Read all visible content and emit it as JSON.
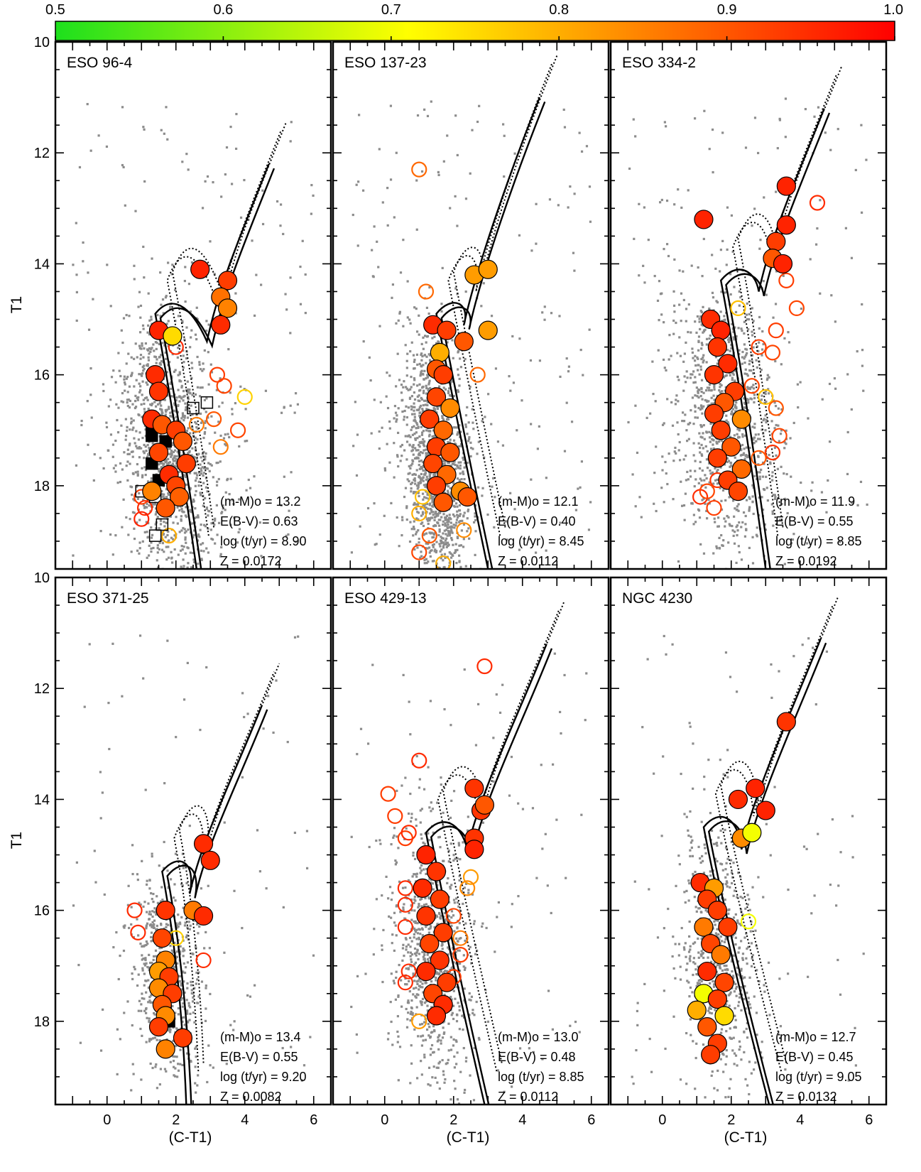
{
  "chart_data": {
    "type": "scatter",
    "colorbar": {
      "ticks": [
        "0.5",
        "0.6",
        "0.7",
        "0.8",
        "0.9",
        "1.0"
      ],
      "range": [
        0.5,
        1.0
      ],
      "colors": [
        "#1de01d",
        "#ffff00",
        "#ffa500",
        "#ff0000"
      ]
    },
    "x_axis": {
      "label": "(C-T1)",
      "range": [
        -1.5,
        6.5
      ],
      "ticks": [
        "0",
        "2",
        "4",
        "6"
      ]
    },
    "y_axis": {
      "label": "T1",
      "range": [
        19.5,
        10
      ],
      "ticks": [
        "10",
        "12",
        "14",
        "16",
        "18"
      ]
    },
    "panels": [
      {
        "title": "ESO 96-4",
        "params": [
          "(m-M)o = 13.2",
          "E(B-V) = 0.63",
          "log (t/yr) = 8.90",
          "Z = 0.0172"
        ],
        "field": {
          "cx": 1.8,
          "cy": 17.4,
          "sx": 0.7,
          "sy": 1.2,
          "n": 1400,
          "seed": 11
        },
        "iso": {
          "msx": 2.6,
          "msy": 19.5,
          "tox": 1.4,
          "toy": 14.9,
          "bmx": 2.9,
          "bmy": 15.4,
          "tipx": 4.7,
          "tipy": 12.2
        },
        "members": [
          [
            2.7,
            14.1,
            0.96
          ],
          [
            3.5,
            14.3,
            0.93
          ],
          [
            3.3,
            14.6,
            0.87
          ],
          [
            3.5,
            14.8,
            0.85
          ],
          [
            3.3,
            15.1,
            0.95
          ],
          [
            1.5,
            15.2,
            0.96
          ],
          [
            1.9,
            15.3,
            0.75
          ],
          [
            1.4,
            16.0,
            0.95
          ],
          [
            1.5,
            16.3,
            0.94
          ],
          [
            1.3,
            16.8,
            0.95
          ],
          [
            1.6,
            16.9,
            0.9
          ],
          [
            2.0,
            17.0,
            0.93
          ],
          [
            2.2,
            17.2,
            0.9
          ],
          [
            1.5,
            17.4,
            0.92
          ],
          [
            2.3,
            17.6,
            0.93
          ],
          [
            1.8,
            17.8,
            0.95
          ],
          [
            2.0,
            18.0,
            0.92
          ],
          [
            1.3,
            18.1,
            0.85
          ],
          [
            2.1,
            18.2,
            0.89
          ],
          [
            1.7,
            18.4,
            0.9
          ]
        ],
        "open": [
          [
            2.0,
            15.5,
            0.95
          ],
          [
            3.2,
            16.0,
            0.93
          ],
          [
            3.4,
            16.2,
            0.92
          ],
          [
            4.0,
            16.4,
            0.76
          ],
          [
            3.1,
            16.8,
            0.9
          ],
          [
            2.6,
            16.9,
            0.86
          ],
          [
            3.8,
            17.0,
            0.92
          ],
          [
            3.3,
            17.3,
            0.86
          ],
          [
            1.0,
            18.2,
            0.93
          ],
          [
            1.1,
            18.4,
            0.95
          ],
          [
            1.0,
            18.6,
            0.96
          ],
          [
            1.8,
            18.9,
            0.8
          ]
        ],
        "squares": [
          [
            1.3,
            16.9,
            1
          ],
          [
            1.3,
            17.1,
            1
          ],
          [
            1.7,
            17.2,
            1
          ],
          [
            1.3,
            17.6,
            1
          ],
          [
            1.5,
            17.9,
            1
          ],
          [
            1.0,
            18.1,
            0
          ],
          [
            1.4,
            18.2,
            0
          ],
          [
            1.6,
            18.7,
            0
          ],
          [
            1.4,
            18.9,
            0
          ],
          [
            2.5,
            16.6,
            0
          ],
          [
            2.9,
            16.5,
            0
          ]
        ]
      },
      {
        "title": "ESO 137-23",
        "params": [
          "(m-M)o = 12.1",
          "E(B-V) = 0.40",
          "log (t/yr) = 8.45",
          "Z = 0.0112"
        ],
        "field": {
          "cx": 1.5,
          "cy": 17.6,
          "sx": 0.5,
          "sy": 1.1,
          "n": 1500,
          "seed": 23
        },
        "iso": {
          "msx": 3.0,
          "msy": 19.5,
          "tox": 1.5,
          "toy": 14.9,
          "bmx": 2.3,
          "bmy": 15.1,
          "tipx": 4.5,
          "tipy": 11.0
        },
        "members": [
          [
            2.6,
            14.2,
            0.82
          ],
          [
            3.0,
            14.1,
            0.82
          ],
          [
            1.4,
            15.1,
            0.95
          ],
          [
            1.8,
            15.2,
            0.93
          ],
          [
            2.3,
            15.4,
            0.9
          ],
          [
            3.0,
            15.2,
            0.82
          ],
          [
            1.6,
            15.6,
            0.8
          ],
          [
            1.5,
            15.9,
            0.9
          ],
          [
            1.7,
            16.0,
            0.93
          ],
          [
            1.5,
            16.4,
            0.92
          ],
          [
            1.9,
            16.6,
            0.84
          ],
          [
            1.3,
            16.8,
            0.93
          ],
          [
            1.7,
            17.0,
            0.88
          ],
          [
            1.5,
            17.3,
            0.93
          ],
          [
            1.9,
            17.4,
            0.9
          ],
          [
            1.4,
            17.6,
            0.92
          ],
          [
            1.8,
            17.8,
            0.88
          ],
          [
            1.5,
            18.0,
            0.93
          ],
          [
            2.2,
            18.1,
            0.84
          ],
          [
            1.7,
            18.3,
            0.9
          ],
          [
            2.4,
            18.2,
            0.9
          ]
        ],
        "open": [
          [
            1.0,
            12.3,
            0.88
          ],
          [
            1.2,
            14.5,
            0.88
          ],
          [
            2.7,
            16.0,
            0.88
          ],
          [
            1.1,
            18.2,
            0.78
          ],
          [
            1.0,
            18.5,
            0.8
          ],
          [
            1.3,
            18.9,
            0.9
          ],
          [
            2.3,
            18.8,
            0.84
          ],
          [
            1.0,
            19.2,
            0.92
          ],
          [
            1.7,
            19.4,
            0.8
          ]
        ]
      },
      {
        "title": "ESO 334-2",
        "params": [
          "(m-M)o = 11.9",
          "E(B-V) = 0.55",
          "log (t/yr) = 8.85",
          "Z = 0.0192"
        ],
        "field": {
          "cx": 1.9,
          "cy": 16.8,
          "sx": 0.8,
          "sy": 1.3,
          "n": 1100,
          "seed": 37
        },
        "iso": {
          "msx": 3.0,
          "msy": 19.5,
          "tox": 1.7,
          "toy": 14.3,
          "bmx": 2.8,
          "bmy": 14.5,
          "tipx": 4.7,
          "tipy": 11.2
        },
        "members": [
          [
            3.6,
            12.6,
            0.96
          ],
          [
            1.2,
            13.2,
            0.96
          ],
          [
            3.6,
            13.3,
            0.96
          ],
          [
            3.3,
            13.6,
            0.93
          ],
          [
            3.2,
            13.9,
            0.9
          ],
          [
            3.5,
            14.0,
            0.96
          ],
          [
            1.4,
            15.0,
            0.95
          ],
          [
            1.7,
            15.2,
            0.96
          ],
          [
            1.6,
            15.5,
            0.94
          ],
          [
            1.9,
            15.8,
            0.95
          ],
          [
            1.5,
            16.0,
            0.94
          ],
          [
            2.1,
            16.3,
            0.93
          ],
          [
            1.8,
            16.5,
            0.9
          ],
          [
            1.5,
            16.7,
            0.93
          ],
          [
            2.3,
            16.8,
            0.84
          ],
          [
            1.7,
            17.0,
            0.93
          ],
          [
            2.0,
            17.3,
            0.9
          ],
          [
            1.6,
            17.5,
            0.93
          ],
          [
            2.3,
            17.7,
            0.88
          ],
          [
            1.9,
            17.9,
            0.93
          ],
          [
            2.2,
            18.1,
            0.92
          ]
        ],
        "open": [
          [
            4.5,
            12.9,
            0.95
          ],
          [
            2.2,
            14.8,
            0.78
          ],
          [
            3.6,
            14.3,
            0.93
          ],
          [
            3.9,
            14.8,
            0.92
          ],
          [
            3.3,
            15.2,
            0.93
          ],
          [
            2.8,
            15.5,
            0.93
          ],
          [
            3.2,
            15.6,
            0.92
          ],
          [
            2.6,
            16.2,
            0.92
          ],
          [
            3.0,
            16.4,
            0.78
          ],
          [
            3.3,
            16.6,
            0.9
          ],
          [
            3.4,
            17.1,
            0.92
          ],
          [
            3.2,
            17.4,
            0.94
          ],
          [
            2.8,
            17.5,
            0.9
          ],
          [
            1.6,
            17.9,
            0.94
          ],
          [
            1.1,
            18.2,
            0.95
          ],
          [
            1.5,
            18.4,
            0.93
          ],
          [
            1.3,
            18.1,
            0.92
          ]
        ]
      },
      {
        "title": "ESO 371-25",
        "params": [
          "(m-M)o = 13.4",
          "E(B-V) = 0.55",
          "log (t/yr) = 9.20",
          "Z = 0.0082"
        ],
        "field": {
          "cx": 1.7,
          "cy": 17.1,
          "sx": 0.5,
          "sy": 1.0,
          "n": 650,
          "seed": 41
        },
        "iso": {
          "msx": 2.3,
          "msy": 19.5,
          "tox": 1.6,
          "toy": 15.3,
          "bmx": 2.4,
          "bmy": 15.7,
          "tipx": 4.5,
          "tipy": 12.3
        },
        "members": [
          [
            2.8,
            14.8,
            0.95
          ],
          [
            3.0,
            15.1,
            0.95
          ],
          [
            2.5,
            16.0,
            0.86
          ],
          [
            2.8,
            16.1,
            0.95
          ],
          [
            1.7,
            16.0,
            0.94
          ],
          [
            1.6,
            16.5,
            0.92
          ],
          [
            1.7,
            16.9,
            0.85
          ],
          [
            1.5,
            17.1,
            0.82
          ],
          [
            1.8,
            17.2,
            0.93
          ],
          [
            1.5,
            17.4,
            0.84
          ],
          [
            1.9,
            17.5,
            0.93
          ],
          [
            1.6,
            17.7,
            0.9
          ],
          [
            1.7,
            17.9,
            0.84
          ],
          [
            1.5,
            18.1,
            0.93
          ],
          [
            2.2,
            18.3,
            0.93
          ],
          [
            1.7,
            18.5,
            0.85
          ]
        ],
        "open": [
          [
            0.8,
            16.0,
            0.95
          ],
          [
            0.9,
            16.4,
            0.95
          ],
          [
            2.0,
            16.5,
            0.76
          ],
          [
            2.8,
            16.9,
            0.95
          ]
        ],
        "squares": [
          [
            1.7,
            17.8,
            1
          ],
          [
            1.8,
            18.0,
            1
          ]
        ]
      },
      {
        "title": "ESO 429-13",
        "params": [
          "(m-M)o = 13.0",
          "E(B-V) = 0.48",
          "log (t/yr) = 8.85",
          "Z = 0.0112"
        ],
        "field": {
          "cx": 1.4,
          "cy": 16.8,
          "sx": 0.6,
          "sy": 1.2,
          "n": 900,
          "seed": 53
        },
        "iso": {
          "msx": 2.9,
          "msy": 19.5,
          "tox": 1.2,
          "toy": 14.6,
          "bmx": 2.4,
          "bmy": 14.9,
          "tipx": 4.7,
          "tipy": 11.2
        },
        "members": [
          [
            2.6,
            13.8,
            0.94
          ],
          [
            2.8,
            14.2,
            0.94
          ],
          [
            2.9,
            14.1,
            0.9
          ],
          [
            2.6,
            14.7,
            0.94
          ],
          [
            2.6,
            14.9,
            0.96
          ],
          [
            1.2,
            15.0,
            0.96
          ],
          [
            1.5,
            15.3,
            0.94
          ],
          [
            1.1,
            15.6,
            0.95
          ],
          [
            1.6,
            15.8,
            0.93
          ],
          [
            1.2,
            16.1,
            0.94
          ],
          [
            1.7,
            16.4,
            0.93
          ],
          [
            1.3,
            16.6,
            0.92
          ],
          [
            1.6,
            16.9,
            0.94
          ],
          [
            1.2,
            17.1,
            0.95
          ],
          [
            1.8,
            17.3,
            0.93
          ],
          [
            1.4,
            17.5,
            0.92
          ],
          [
            1.7,
            17.7,
            0.95
          ],
          [
            1.5,
            17.9,
            0.95
          ]
        ],
        "open": [
          [
            2.9,
            11.6,
            0.95
          ],
          [
            1.0,
            13.3,
            0.95
          ],
          [
            0.1,
            13.9,
            0.93
          ],
          [
            0.3,
            14.3,
            0.93
          ],
          [
            0.6,
            14.7,
            0.93
          ],
          [
            0.7,
            14.6,
            0.95
          ],
          [
            2.5,
            15.4,
            0.82
          ],
          [
            2.4,
            15.6,
            0.84
          ],
          [
            0.6,
            15.6,
            0.95
          ],
          [
            0.6,
            15.9,
            0.95
          ],
          [
            2.0,
            16.1,
            0.92
          ],
          [
            0.6,
            16.3,
            0.95
          ],
          [
            2.2,
            16.5,
            0.86
          ],
          [
            2.2,
            16.8,
            0.93
          ],
          [
            0.7,
            17.1,
            0.95
          ],
          [
            0.6,
            17.3,
            0.95
          ],
          [
            2.0,
            17.2,
            0.93
          ],
          [
            1.0,
            18.0,
            0.82
          ]
        ]
      },
      {
        "title": "NGC 4230",
        "params": [
          "(m-M)o = 12.7",
          "E(B-V) = 0.45",
          "log (t/yr) = 9.05",
          "Z = 0.0132"
        ],
        "field": {
          "cx": 1.6,
          "cy": 16.8,
          "sx": 0.5,
          "sy": 1.1,
          "n": 700,
          "seed": 67
        },
        "iso": {
          "msx": 3.1,
          "msy": 19.5,
          "tox": 1.2,
          "toy": 14.5,
          "bmx": 2.3,
          "bmy": 14.9,
          "tipx": 4.6,
          "tipy": 11.1
        },
        "members": [
          [
            3.6,
            12.6,
            0.94
          ],
          [
            2.7,
            13.8,
            0.96
          ],
          [
            2.2,
            14.0,
            0.95
          ],
          [
            3.0,
            14.2,
            0.96
          ],
          [
            2.3,
            14.7,
            0.84
          ],
          [
            2.6,
            14.6,
            0.7
          ],
          [
            1.1,
            15.5,
            0.95
          ],
          [
            1.5,
            15.6,
            0.82
          ],
          [
            1.3,
            15.8,
            0.93
          ],
          [
            1.6,
            16.0,
            0.93
          ],
          [
            1.2,
            16.3,
            0.86
          ],
          [
            1.9,
            16.3,
            0.93
          ],
          [
            1.4,
            16.6,
            0.92
          ],
          [
            1.7,
            16.8,
            0.86
          ],
          [
            1.3,
            17.1,
            0.95
          ],
          [
            1.8,
            17.3,
            0.92
          ],
          [
            1.2,
            17.5,
            0.7
          ],
          [
            1.6,
            17.6,
            0.93
          ],
          [
            1.0,
            17.8,
            0.8
          ],
          [
            1.8,
            17.9,
            0.75
          ],
          [
            1.3,
            18.1,
            0.9
          ],
          [
            1.6,
            18.4,
            0.93
          ],
          [
            1.4,
            18.6,
            0.93
          ]
        ],
        "open": [
          [
            2.5,
            16.2,
            0.7
          ]
        ]
      }
    ]
  }
}
